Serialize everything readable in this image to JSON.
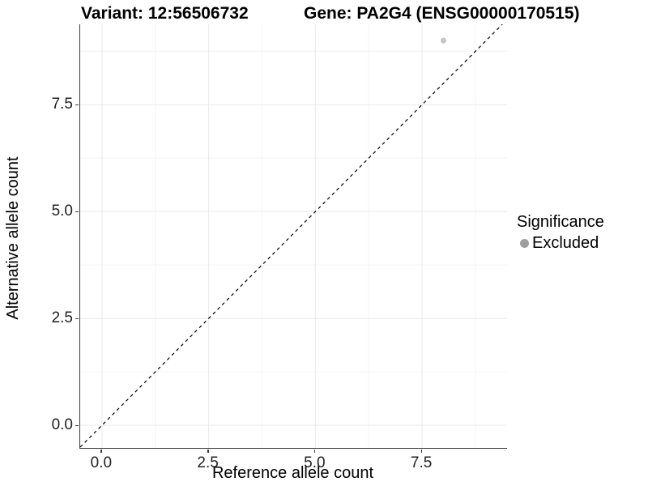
{
  "chart_data": {
    "type": "scatter",
    "title_left": "Variant: 12:56506732",
    "title_right": "Gene: PA2G4 (ENSG00000170515)",
    "xlabel": "Reference allele count",
    "ylabel": "Alternative allele count",
    "xlim": [
      -0.51,
      9.49
    ],
    "ylim": [
      -0.53,
      9.38
    ],
    "x_major_ticks": [
      0.0,
      2.5,
      5.0,
      7.5
    ],
    "y_major_ticks": [
      0.0,
      2.5,
      5.0,
      7.5
    ],
    "x_tick_labels": [
      "0.0",
      "2.5",
      "5.0",
      "7.5"
    ],
    "y_tick_labels": [
      "0.0",
      "2.5",
      "5.0",
      "7.5"
    ],
    "x_minor_ticks": [
      1.25,
      3.75,
      6.25,
      8.75
    ],
    "y_minor_ticks": [
      1.25,
      3.75,
      6.25,
      8.75
    ],
    "grid": true,
    "reference_line": {
      "kind": "identity",
      "style": "dashed",
      "color": "#000000"
    },
    "points": [
      {
        "x": 8,
        "y": 9,
        "series": "Excluded"
      }
    ],
    "legend": {
      "title": "Significance",
      "position": "right",
      "items": [
        {
          "label": "Excluded",
          "color": "#9e9e9e"
        }
      ]
    },
    "style": {
      "point_fill": "#c6c6c6",
      "point_radius": 3.5,
      "legend_dot_color": "#9e9e9e",
      "grid_major_color": "#e9e9e9",
      "grid_minor_color": "#f4f4f4",
      "axis_line_color": "#3c3c3c",
      "background": "#ffffff"
    }
  }
}
